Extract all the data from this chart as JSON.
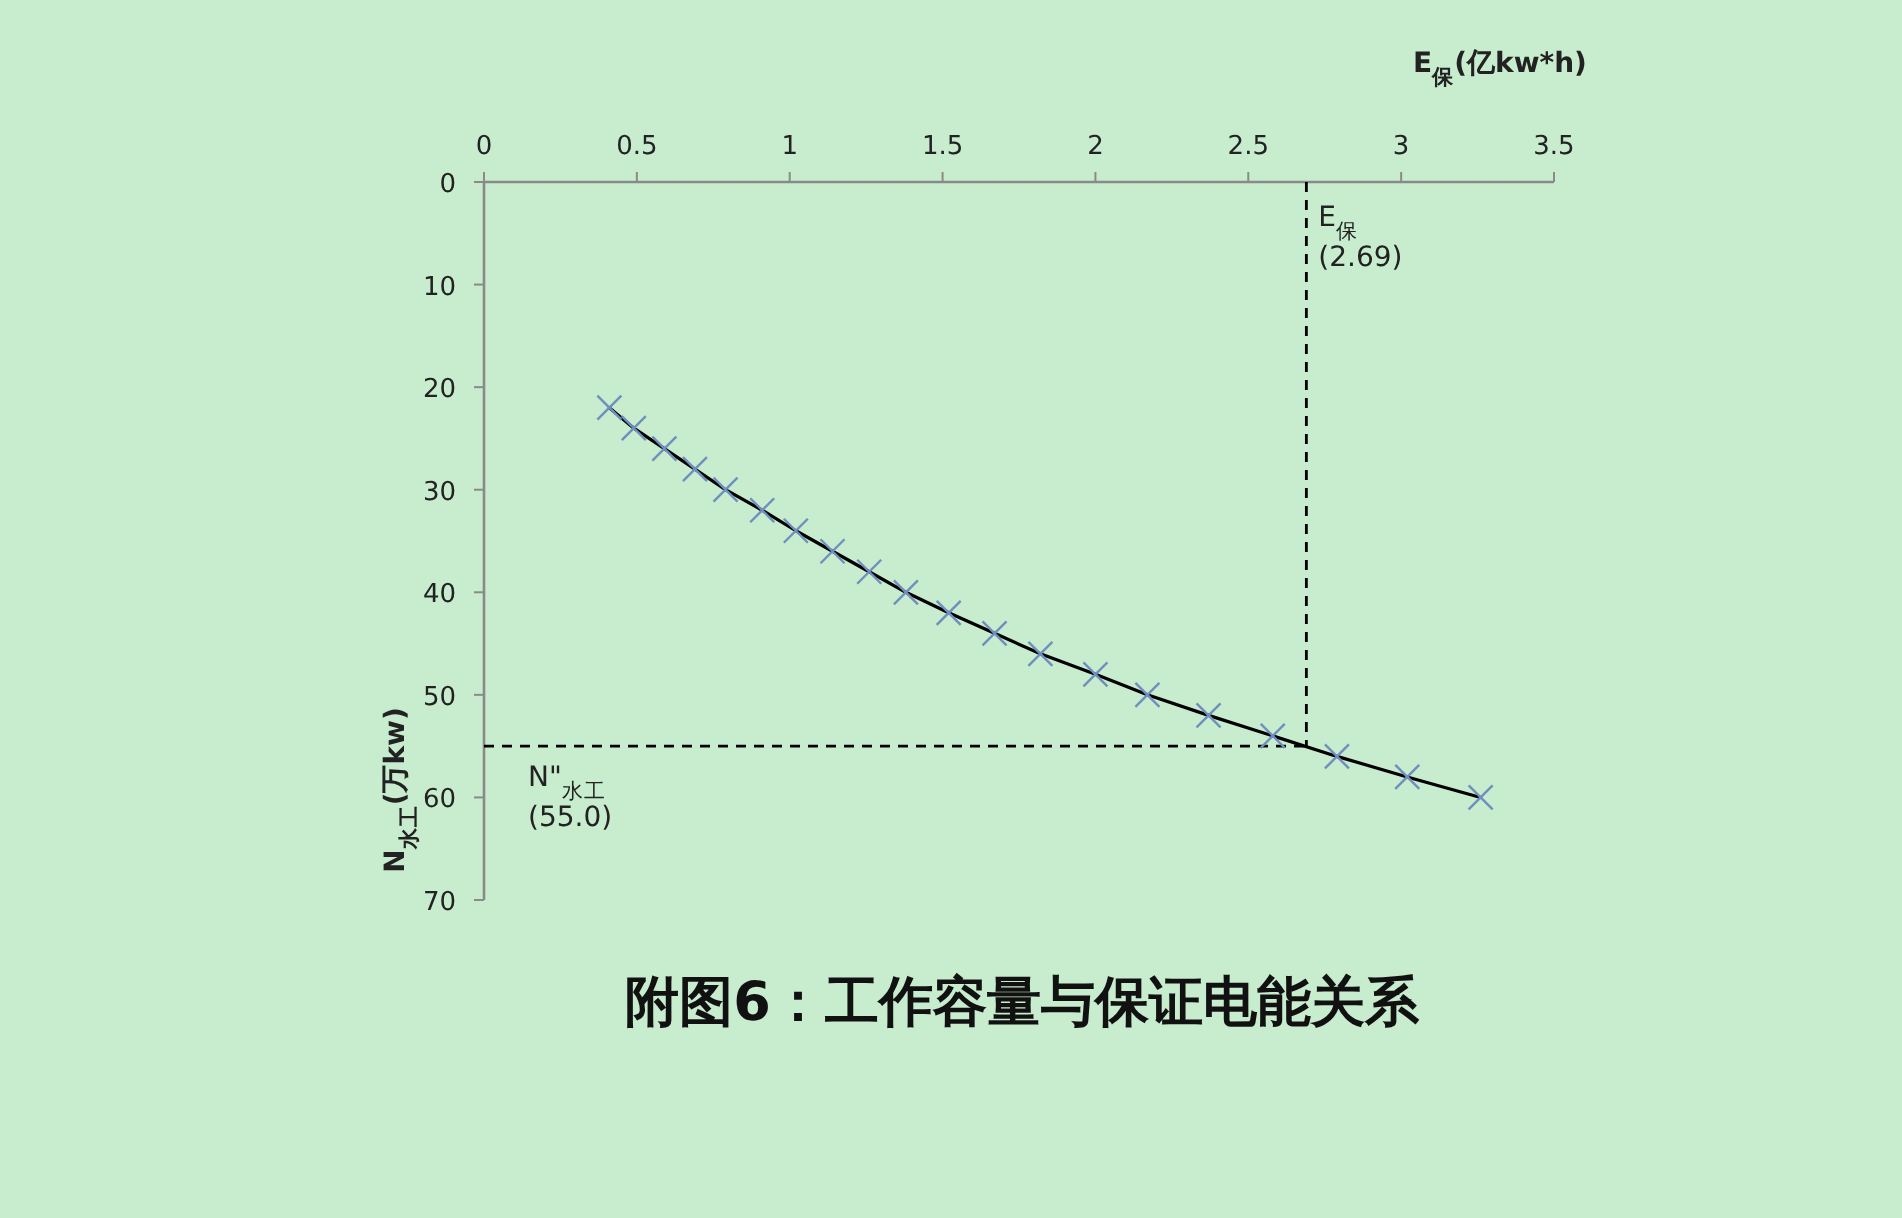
{
  "chart_data": {
    "type": "line",
    "title": "附图6：工作容量与保证电能关系",
    "xlabel": "E$_{保}$(亿kw*h)",
    "ylabel": "N$_{水工}$(万kw)",
    "xlim": [
      0,
      3.5
    ],
    "xticks": [
      0,
      0.5,
      1,
      1.5,
      2,
      2.5,
      3,
      3.5
    ],
    "ylim": [
      70,
      0
    ],
    "yticks": [
      0,
      10,
      20,
      30,
      40,
      50,
      60,
      70
    ],
    "grid": false,
    "x": [
      0.41,
      0.49,
      0.59,
      0.69,
      0.79,
      0.91,
      1.02,
      1.14,
      1.26,
      1.38,
      1.52,
      1.67,
      1.82,
      2.0,
      2.17,
      2.37,
      2.58,
      2.79,
      3.02,
      3.26
    ],
    "series": [
      {
        "color": "#000000",
        "marker": "none",
        "values": [
          22,
          24,
          26,
          28,
          30,
          32,
          34,
          36,
          38,
          40,
          42,
          44,
          46,
          48,
          50,
          52,
          54,
          56,
          58,
          60
        ]
      },
      {
        "type": "scatter",
        "color": "#6f8fbf",
        "marker": "cross",
        "values": [
          22,
          24,
          26,
          28,
          30,
          32,
          34,
          36,
          38,
          40,
          42,
          44,
          46,
          48,
          50,
          52,
          54,
          56,
          58,
          60
        ]
      }
    ],
    "ref_lines": [
      {
        "axis": "x",
        "value": 2.69,
        "label": "E$_{保}$\n(2.69)",
        "color": "#000000",
        "line_style": "dashed"
      },
      {
        "axis": "y",
        "value": 55.0,
        "label": "N\"$_{水工}$\n(55.0)",
        "color": "#000000",
        "line_style": "dashed"
      }
    ]
  }
}
